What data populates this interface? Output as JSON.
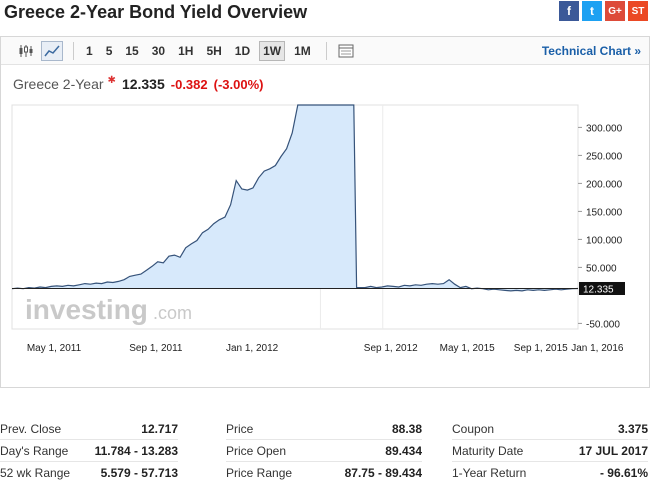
{
  "header": {
    "title": "Greece 2-Year Bond Yield Overview",
    "social": [
      {
        "name": "facebook",
        "glyph": "f",
        "color": "#3b5998"
      },
      {
        "name": "twitter",
        "glyph": "t",
        "color": "#1da1f2"
      },
      {
        "name": "google-plus",
        "glyph": "G+",
        "color": "#dd4b39"
      },
      {
        "name": "stumbleupon",
        "glyph": "ST",
        "color": "#eb4924"
      }
    ]
  },
  "toolbar": {
    "timeframes": [
      "1",
      "5",
      "15",
      "30",
      "1H",
      "5H",
      "1D",
      "1W",
      "1M"
    ],
    "active_timeframe": "1W",
    "technical_chart_link": "Technical Chart »"
  },
  "quote": {
    "name": "Greece 2-Year",
    "price": "12.335",
    "change": "-0.382",
    "change_pct": "(-3.00%)",
    "negative_color": "#d11111"
  },
  "chart_data": {
    "type": "area",
    "watermark": "investing",
    "watermark_suffix": ".com",
    "x_ticks": [
      "May 1, 2011",
      "Sep 1, 2011",
      "Jan 1, 2012",
      "Sep 1, 2012",
      "May 1, 2015",
      "Sep 1, 2015",
      "Jan 1, 2016"
    ],
    "y_ticks": [
      "300.000",
      "250.000",
      "200.000",
      "150.000",
      "100.000",
      "50.000",
      "-50.000"
    ],
    "y_tick_values": [
      300,
      250,
      200,
      150,
      100,
      50,
      -50
    ],
    "ylim": [
      -60,
      340
    ],
    "last_value_label": "12.335",
    "last_value": 12.335,
    "series": [
      {
        "values": [
          [
            0,
            12
          ],
          [
            2,
            13
          ],
          [
            4,
            12
          ],
          [
            6,
            14
          ],
          [
            8,
            13
          ],
          [
            10,
            15
          ],
          [
            12,
            14
          ],
          [
            14,
            16
          ],
          [
            16,
            17
          ],
          [
            18,
            16
          ],
          [
            20,
            18
          ],
          [
            22,
            17
          ],
          [
            24,
            19
          ],
          [
            26,
            21
          ],
          [
            28,
            20
          ],
          [
            30,
            22
          ],
          [
            32,
            21
          ],
          [
            34,
            24
          ],
          [
            36,
            23
          ],
          [
            38,
            25
          ],
          [
            40,
            28
          ],
          [
            42,
            34
          ],
          [
            44,
            36
          ],
          [
            46,
            38
          ],
          [
            48,
            45
          ],
          [
            50,
            52
          ],
          [
            52,
            60
          ],
          [
            54,
            58
          ],
          [
            56,
            70
          ],
          [
            58,
            72
          ],
          [
            60,
            68
          ],
          [
            62,
            85
          ],
          [
            64,
            92
          ],
          [
            66,
            98
          ],
          [
            68,
            112
          ],
          [
            70,
            118
          ],
          [
            72,
            128
          ],
          [
            74,
            135
          ],
          [
            76,
            140
          ],
          [
            78,
            162
          ],
          [
            80,
            205
          ],
          [
            82,
            190
          ],
          [
            84,
            188
          ],
          [
            86,
            192
          ],
          [
            88,
            210
          ],
          [
            90,
            222
          ],
          [
            92,
            226
          ],
          [
            94,
            232
          ],
          [
            96,
            248
          ],
          [
            98,
            262
          ],
          [
            100,
            290
          ],
          [
            102,
            340
          ],
          [
            104,
            340
          ],
          [
            106,
            340
          ],
          [
            108,
            340
          ],
          [
            110,
            340
          ],
          [
            112,
            340
          ],
          [
            114,
            340
          ],
          [
            116,
            340
          ],
          [
            118,
            340
          ],
          [
            120,
            340
          ],
          [
            122,
            340
          ],
          [
            123,
            14
          ],
          [
            126,
            14
          ],
          [
            128,
            16
          ],
          [
            130,
            14
          ],
          [
            132,
            15
          ],
          [
            134,
            17
          ],
          [
            136,
            16
          ],
          [
            138,
            15
          ],
          [
            140,
            18
          ],
          [
            142,
            17
          ],
          [
            144,
            19
          ],
          [
            146,
            18
          ],
          [
            148,
            20
          ],
          [
            150,
            21
          ],
          [
            152,
            20
          ],
          [
            154,
            21
          ],
          [
            156,
            28
          ],
          [
            158,
            20
          ],
          [
            160,
            14
          ],
          [
            162,
            16
          ],
          [
            164,
            12
          ],
          [
            166,
            13
          ],
          [
            168,
            12
          ],
          [
            170,
            10
          ],
          [
            172,
            11
          ],
          [
            174,
            10
          ],
          [
            176,
            9
          ],
          [
            178,
            8
          ],
          [
            180,
            9
          ],
          [
            182,
            8
          ],
          [
            184,
            10
          ],
          [
            186,
            9
          ],
          [
            188,
            10
          ],
          [
            190,
            9
          ],
          [
            192,
            10
          ],
          [
            194,
            11
          ],
          [
            196,
            10
          ],
          [
            198,
            11
          ],
          [
            200,
            12
          ],
          [
            202,
            12.335
          ]
        ]
      }
    ]
  },
  "stats": {
    "col1": [
      {
        "label": "Prev. Close",
        "value": "12.717"
      },
      {
        "label": "Day's Range",
        "value": "11.784 - 13.283"
      },
      {
        "label": "52 wk Range",
        "value": "5.579 - 57.713"
      }
    ],
    "col2": [
      {
        "label": "Price",
        "value": "88.38"
      },
      {
        "label": "Price Open",
        "value": "89.434"
      },
      {
        "label": "Price Range",
        "value": "87.75 - 89.434"
      }
    ],
    "col3": [
      {
        "label": "Coupon",
        "value": "3.375"
      },
      {
        "label": "Maturity Date",
        "value": "17 JUL 2017"
      },
      {
        "label": "1-Year Return",
        "value": "- 96.61%"
      }
    ]
  }
}
